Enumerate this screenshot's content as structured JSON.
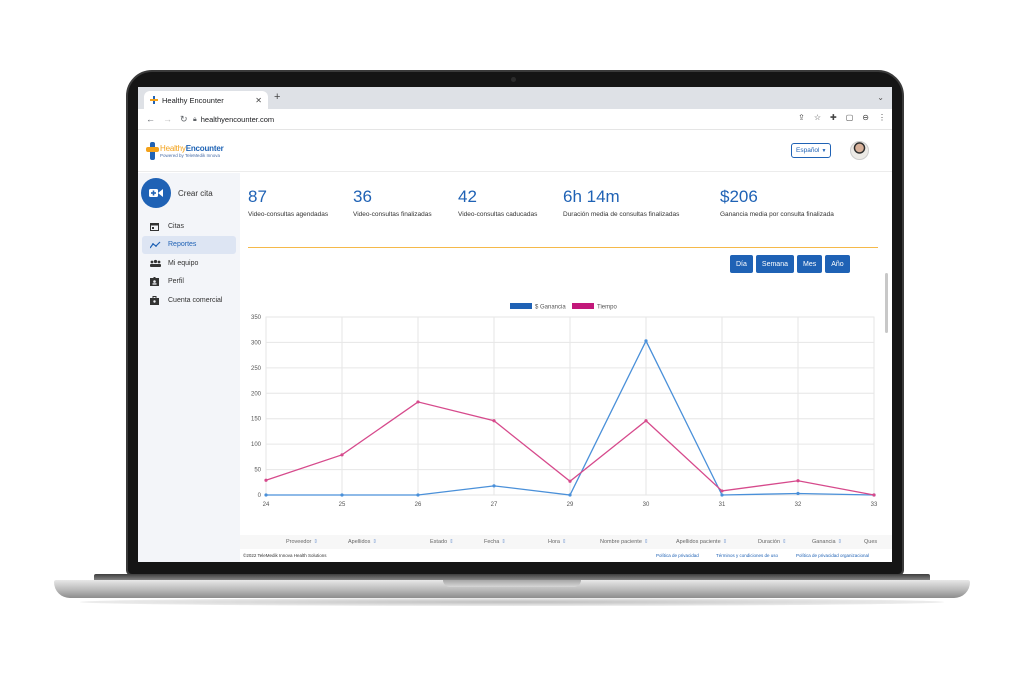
{
  "browser": {
    "tab_title": "Healthy Encounter",
    "tab_close": "✕",
    "new_tab": "+",
    "url": "healthyencounter.com"
  },
  "header": {
    "logo_healthy": "Healthy",
    "logo_encounter": "Encounter",
    "logo_sub": "Powered by TeleMedik Innova",
    "language": "Español"
  },
  "sidebar": {
    "create_label": "Crear cita",
    "items": [
      {
        "label": "Citas",
        "icon": "calendar-icon"
      },
      {
        "label": "Reportes",
        "icon": "trend-icon"
      },
      {
        "label": "Mi equipo",
        "icon": "team-icon"
      },
      {
        "label": "Perfil",
        "icon": "id-card-icon"
      },
      {
        "label": "Cuenta comercial",
        "icon": "briefcase-icon"
      }
    ]
  },
  "stats": [
    {
      "value": "87",
      "label": "Video-consultas agendadas"
    },
    {
      "value": "36",
      "label": "Video-consultas finalizadas"
    },
    {
      "value": "42",
      "label": "Video-consultas caducadas"
    },
    {
      "value": "6h 14m",
      "label": "Duración media de consultas finalizadas"
    },
    {
      "value": "$206",
      "label": "Ganancia media por consulta finalizada"
    }
  ],
  "periods": [
    "Día",
    "Semana",
    "Mes",
    "Año"
  ],
  "chart_data": {
    "type": "line",
    "x": [
      "24",
      "25",
      "26",
      "27",
      "29",
      "30",
      "31",
      "32",
      "33"
    ],
    "ylim": [
      0,
      350
    ],
    "yticks": [
      0,
      50,
      100,
      150,
      200,
      250,
      300,
      350
    ],
    "legend_position": "top-center",
    "grid": true,
    "series": [
      {
        "name": "$ Ganancia",
        "color": "#4a90d9",
        "legend_color": "#1f62b5",
        "values": [
          0,
          0,
          0,
          18,
          0,
          303,
          0,
          3,
          0
        ]
      },
      {
        "name": "Tiempo",
        "color": "#d64a8c",
        "legend_color": "#c2187a",
        "values": [
          29,
          79,
          183,
          146,
          27,
          146,
          8,
          28,
          0
        ]
      }
    ]
  },
  "table_headers": [
    "Proveedor",
    "Apellidos",
    "Estado",
    "Fecha",
    "Hora",
    "Nombre paciente",
    "Apellidos paciente",
    "Duración",
    "Ganancia",
    "Ques"
  ],
  "footer": {
    "copyright": "©2022 TeleMedik Innova Health Solutions",
    "links": [
      "Política de privacidad",
      "Términos y condiciones de uso",
      "Política de privacidad organizacional"
    ]
  },
  "colors": {
    "brand_blue": "#1f62b5",
    "accent_orange": "#f3a21b"
  }
}
